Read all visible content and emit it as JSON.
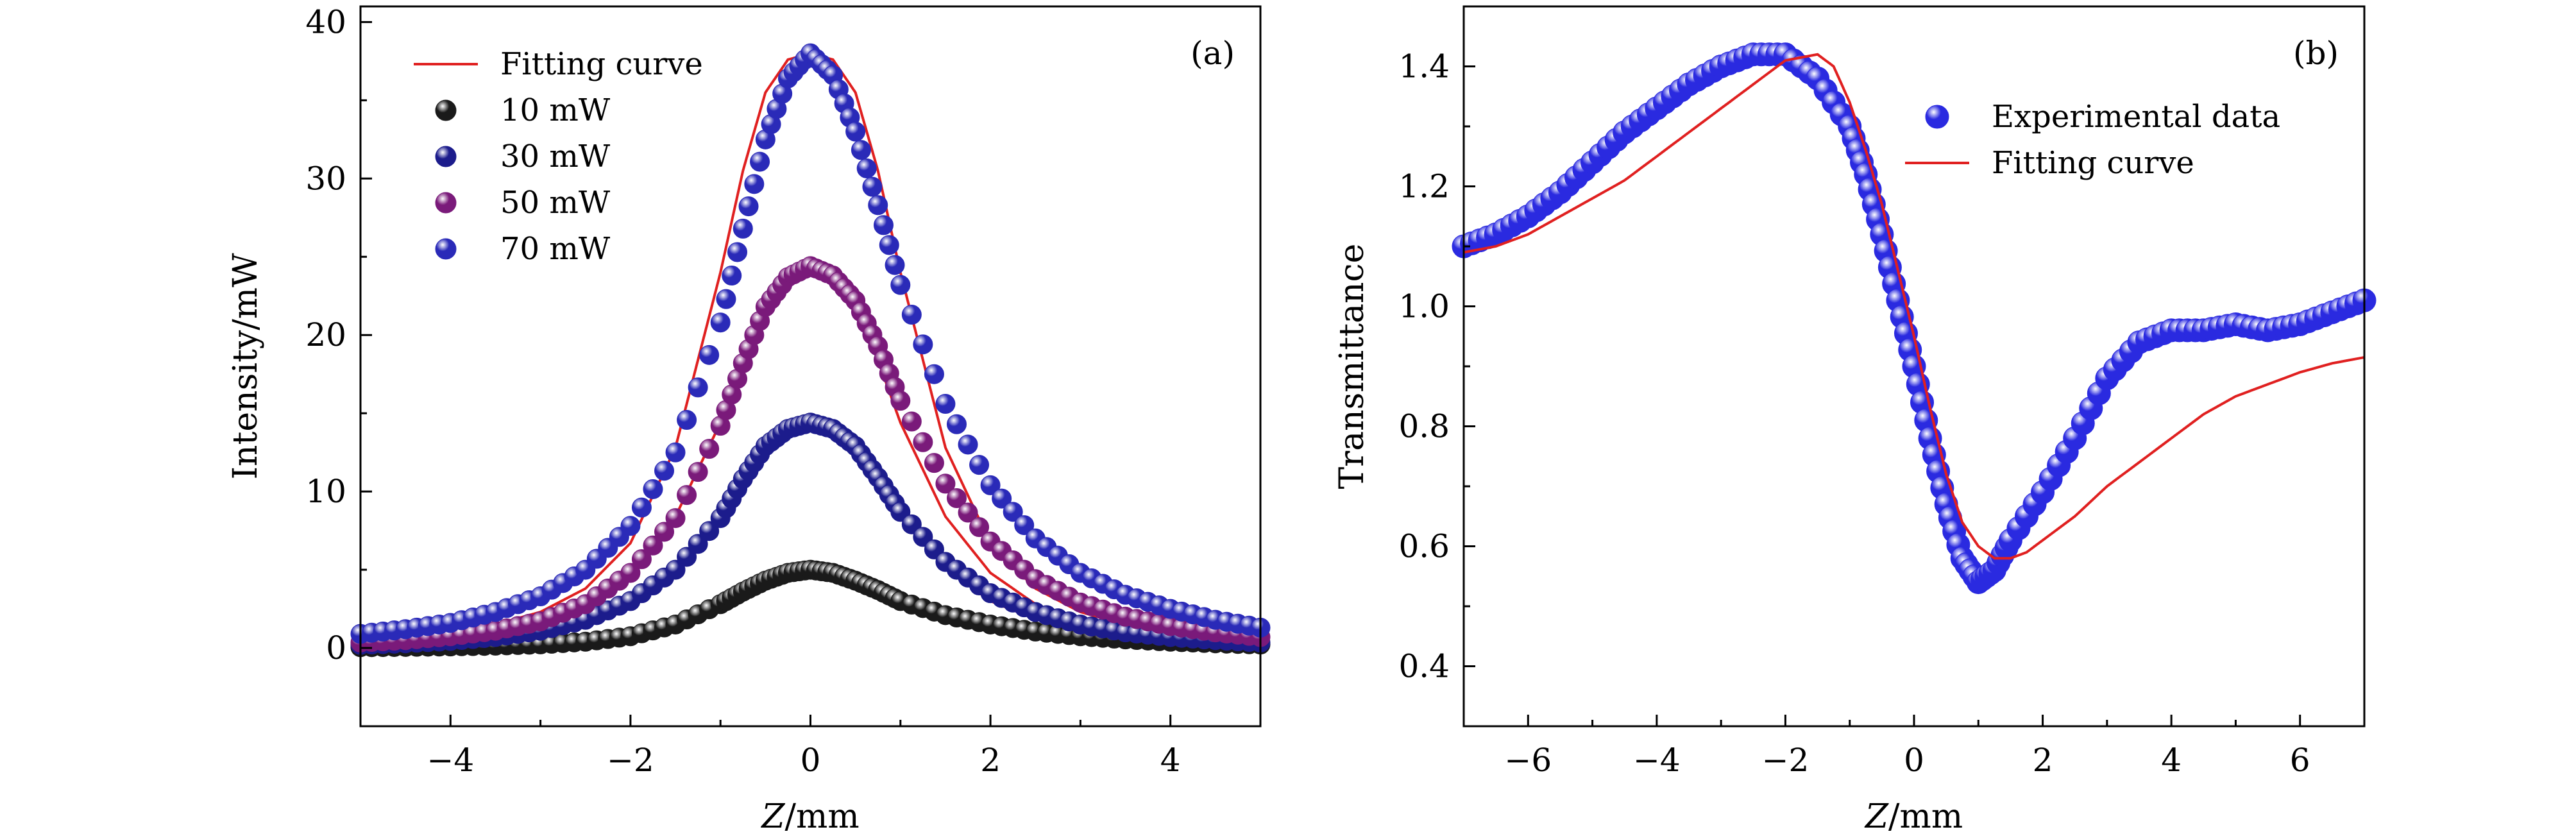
{
  "chart_data": [
    {
      "type": "scatter",
      "panel_label": "(a)",
      "xlabel_var": "Z",
      "xlabel_unit": "/mm",
      "ylabel": "Intensity/mW",
      "xlim": [
        -5,
        5
      ],
      "ylim": [
        -5,
        41
      ],
      "xticks": [
        -4,
        -2,
        0,
        2,
        4
      ],
      "xtick_labels": [
        "−4",
        "−2",
        "0",
        "2",
        "4"
      ],
      "yticks": [
        0,
        10,
        20,
        30,
        40
      ],
      "ytick_labels": [
        "0",
        "10",
        "20",
        "30",
        "40"
      ],
      "grid": false,
      "legend_position": "top-left",
      "fit_label": "Fitting curve",
      "fit_color": "#e02020",
      "x": [
        -5.0,
        -4.5,
        -4.0,
        -3.5,
        -3.0,
        -2.5,
        -2.0,
        -1.5,
        -1.0,
        -0.75,
        -0.5,
        -0.25,
        0.0,
        0.25,
        0.5,
        0.75,
        1.0,
        1.5,
        2.0,
        2.5,
        3.0,
        3.5,
        4.0,
        4.5,
        5.0
      ],
      "series": [
        {
          "name": "10 mW",
          "color": "#1a1a1a",
          "data": [
            0.05,
            0.07,
            0.1,
            0.15,
            0.23,
            0.4,
            0.75,
            1.5,
            2.8,
            3.6,
            4.3,
            4.8,
            5.0,
            4.8,
            4.3,
            3.7,
            3.0,
            2.1,
            1.5,
            1.05,
            0.75,
            0.55,
            0.4,
            0.3,
            0.22
          ],
          "fit": [
            0.12,
            0.15,
            0.2,
            0.28,
            0.4,
            0.6,
            0.95,
            1.6,
            2.7,
            3.4,
            4.0,
            4.35,
            4.5,
            4.35,
            4.0,
            3.45,
            2.8,
            1.95,
            1.35,
            0.95,
            0.68,
            0.5,
            0.38,
            0.3,
            0.24
          ]
        },
        {
          "name": "30 mW",
          "color": "#1c1c8c",
          "data": [
            0.2,
            0.3,
            0.45,
            0.7,
            1.1,
            1.8,
            3.0,
            5.0,
            8.3,
            10.8,
            12.9,
            14.0,
            14.4,
            14.0,
            12.9,
            10.9,
            8.7,
            5.5,
            3.5,
            2.3,
            1.5,
            1.0,
            0.7,
            0.5,
            0.35
          ],
          "fit": [
            0.25,
            0.35,
            0.5,
            0.75,
            1.15,
            1.85,
            3.0,
            5.1,
            8.6,
            11.0,
            13.1,
            14.1,
            14.4,
            14.1,
            13.1,
            11.0,
            8.6,
            5.1,
            3.0,
            1.85,
            1.15,
            0.75,
            0.5,
            0.35,
            0.25
          ]
        },
        {
          "name": "50 mW",
          "color": "#7a1a7a",
          "data": [
            0.35,
            0.5,
            0.75,
            1.1,
            1.7,
            2.8,
            4.8,
            8.3,
            14.2,
            18.2,
            21.8,
            23.7,
            24.4,
            23.8,
            22.2,
            19.3,
            15.8,
            10.5,
            6.8,
            4.4,
            2.9,
            2.0,
            1.4,
            1.0,
            0.7
          ],
          "fit": [
            0.35,
            0.5,
            0.75,
            1.1,
            1.7,
            2.8,
            4.8,
            8.4,
            14.4,
            18.4,
            22.0,
            23.8,
            24.3,
            23.8,
            22.0,
            18.4,
            14.4,
            8.4,
            4.8,
            2.8,
            1.7,
            1.1,
            0.75,
            0.5,
            0.35
          ]
        },
        {
          "name": "70 mW",
          "color": "#2a2ab8",
          "data": [
            0.9,
            1.2,
            1.6,
            2.3,
            3.3,
            5.0,
            7.8,
            12.5,
            20.8,
            26.8,
            32.5,
            36.4,
            38.0,
            36.6,
            33.0,
            28.3,
            23.2,
            15.6,
            10.4,
            7.0,
            4.8,
            3.4,
            2.5,
            1.8,
            1.3
          ],
          "fit": [
            0.5,
            0.7,
            1.0,
            1.5,
            2.3,
            3.8,
            6.7,
            12.8,
            24.0,
            30.5,
            35.5,
            37.6,
            38.0,
            37.6,
            35.5,
            30.5,
            24.0,
            12.8,
            6.7,
            3.8,
            2.3,
            1.5,
            1.0,
            0.7,
            0.5
          ]
        }
      ]
    },
    {
      "type": "scatter",
      "panel_label": "(b)",
      "xlabel_var": "Z",
      "xlabel_unit": "/mm",
      "ylabel": "Transmittance",
      "xlim": [
        -7,
        7
      ],
      "ylim": [
        0.3,
        1.5
      ],
      "xticks": [
        -6,
        -4,
        -2,
        0,
        2,
        4,
        6
      ],
      "xtick_labels": [
        "−6",
        "−4",
        "−2",
        "0",
        "2",
        "4",
        "6"
      ],
      "yticks": [
        0.4,
        0.6,
        0.8,
        1.0,
        1.2,
        1.4
      ],
      "ytick_labels": [
        "0.4",
        "0.6",
        "0.8",
        "1.0",
        "1.2",
        "1.4"
      ],
      "grid": false,
      "legend_position": "top-right",
      "series": [
        {
          "name": "Experimental data",
          "color": "#2a2ae0",
          "x": [
            -7.0,
            -6.5,
            -6.0,
            -5.5,
            -5.0,
            -4.5,
            -4.0,
            -3.5,
            -3.0,
            -2.5,
            -2.0,
            -1.5,
            -1.0,
            -0.75,
            -0.5,
            -0.25,
            0.0,
            0.25,
            0.5,
            0.75,
            1.0,
            1.25,
            1.5,
            2.0,
            2.5,
            3.0,
            3.5,
            4.0,
            4.5,
            5.0,
            5.5,
            6.0,
            6.5,
            7.0
          ],
          "y": [
            1.1,
            1.12,
            1.15,
            1.19,
            1.24,
            1.29,
            1.33,
            1.37,
            1.4,
            1.42,
            1.42,
            1.38,
            1.3,
            1.22,
            1.12,
            1.01,
            0.9,
            0.78,
            0.67,
            0.58,
            0.54,
            0.56,
            0.61,
            0.69,
            0.78,
            0.88,
            0.94,
            0.96,
            0.96,
            0.97,
            0.96,
            0.97,
            0.99,
            1.01
          ]
        },
        {
          "name": "Fitting curve",
          "color": "#e02020",
          "x": [
            -7.0,
            -6.5,
            -6.0,
            -5.5,
            -5.0,
            -4.5,
            -4.0,
            -3.5,
            -3.0,
            -2.5,
            -2.0,
            -1.5,
            -1.25,
            -1.0,
            -0.75,
            -0.5,
            -0.25,
            0.0,
            0.25,
            0.5,
            0.75,
            1.0,
            1.25,
            1.5,
            1.75,
            2.0,
            2.5,
            3.0,
            3.5,
            4.0,
            4.5,
            5.0,
            5.5,
            6.0,
            6.5,
            7.0
          ],
          "y": [
            1.09,
            1.1,
            1.12,
            1.15,
            1.18,
            1.21,
            1.25,
            1.29,
            1.33,
            1.37,
            1.41,
            1.42,
            1.4,
            1.34,
            1.26,
            1.17,
            1.06,
            0.95,
            0.83,
            0.72,
            0.64,
            0.6,
            0.58,
            0.58,
            0.59,
            0.61,
            0.65,
            0.7,
            0.74,
            0.78,
            0.82,
            0.85,
            0.87,
            0.89,
            0.905,
            0.915
          ]
        }
      ]
    }
  ]
}
